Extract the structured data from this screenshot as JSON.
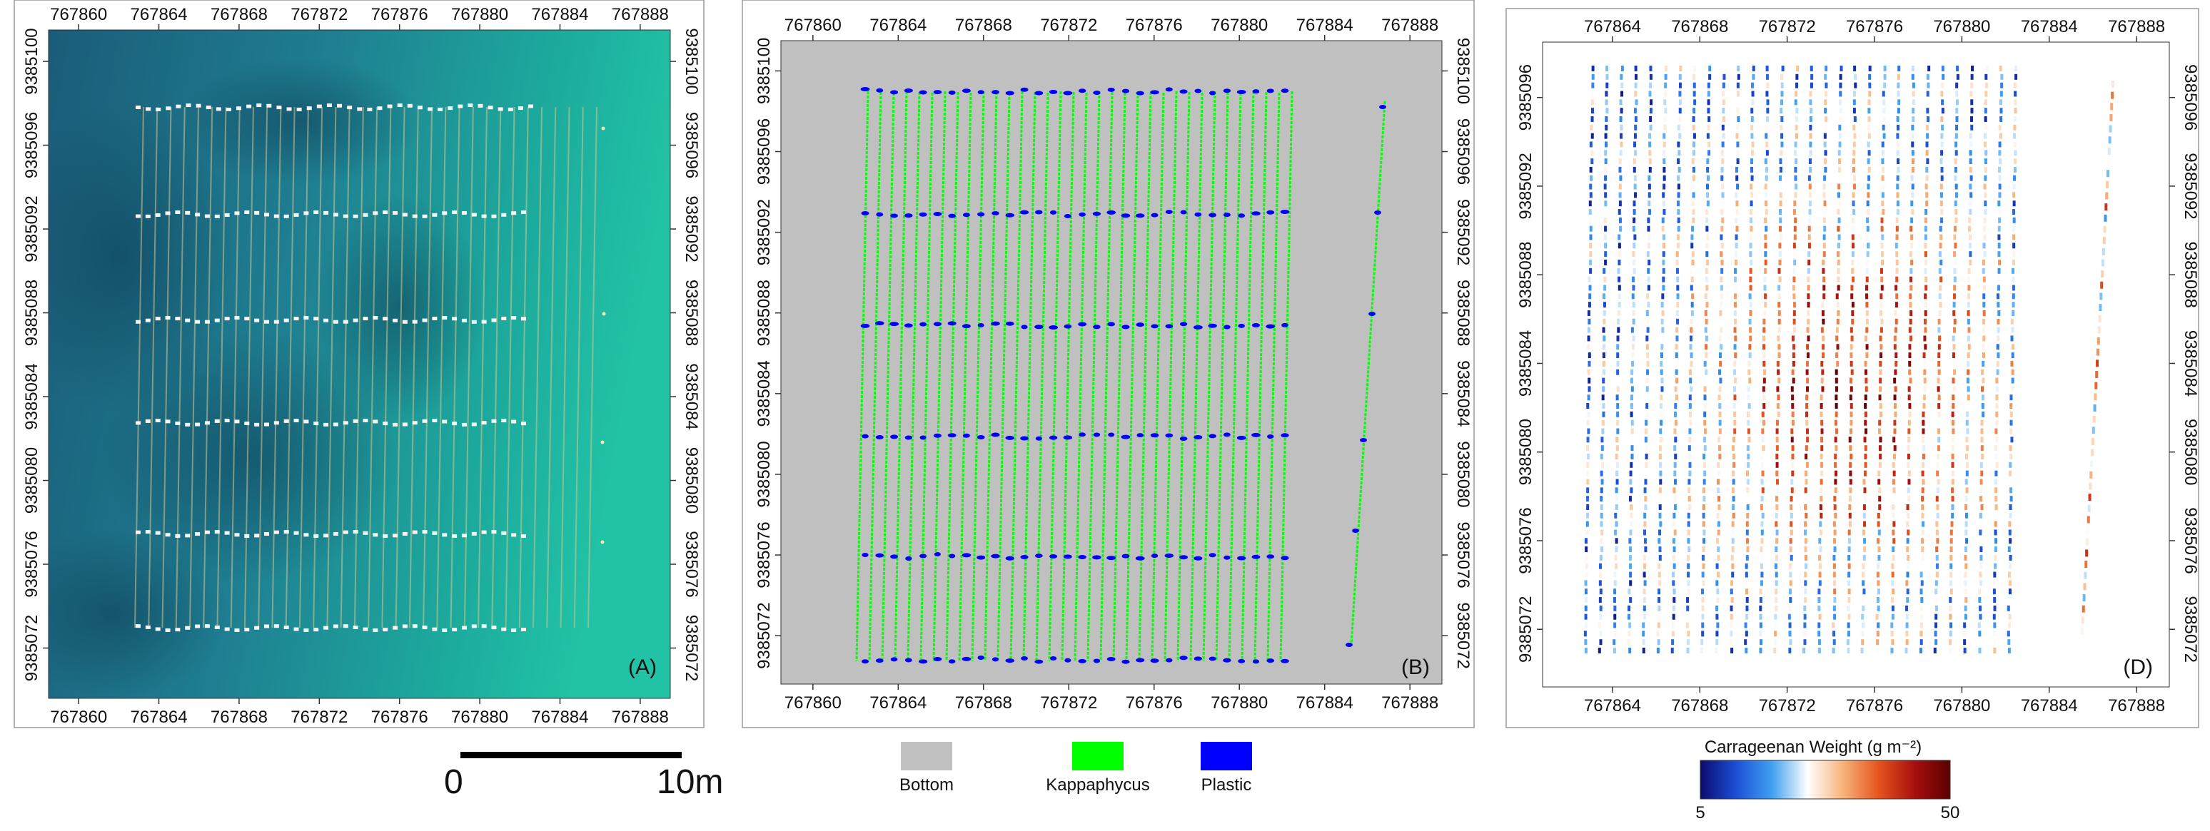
{
  "panels": [
    {
      "id": "A",
      "label": "(A)",
      "style": "photo",
      "x_ticks": [
        "767860",
        "767864",
        "767868",
        "767872",
        "767876",
        "767880",
        "767884",
        "767888"
      ],
      "y_ticks": [
        "9385072",
        "9385076",
        "9385080",
        "9385084",
        "9385088",
        "9385092",
        "9385096",
        "9385100"
      ],
      "x_range": [
        767858.5,
        767889.5
      ],
      "y_range": [
        9385069.6,
        9385101.5
      ],
      "left_axis": true,
      "right_axis": true,
      "top_axis": true,
      "bottom_axis": true
    },
    {
      "id": "B",
      "label": "(B)",
      "style": "classified",
      "x_ticks": [
        "767860",
        "767864",
        "767868",
        "767872",
        "767876",
        "767880",
        "767884",
        "767888"
      ],
      "y_ticks": [
        "9385072",
        "9385076",
        "9385080",
        "9385084",
        "9385088",
        "9385092",
        "9385096",
        "9385100"
      ],
      "x_range": [
        767858.5,
        767889.5
      ],
      "y_range": [
        9385069.6,
        9385101.5
      ],
      "left_axis": true,
      "right_axis": true,
      "top_axis": true,
      "bottom_axis": true
    },
    {
      "id": "D",
      "label": "(D)",
      "style": "weight",
      "x_ticks": [
        "767864",
        "767868",
        "767872",
        "767876",
        "767880",
        "767884",
        "767888"
      ],
      "y_ticks": [
        "9385072",
        "9385076",
        "9385080",
        "9385084",
        "9385088",
        "9385092",
        "9385096"
      ],
      "x_range": [
        767860.8,
        767889.5
      ],
      "y_range": [
        9385069.4,
        9385098.5
      ],
      "left_axis": true,
      "right_axis": true,
      "top_axis": true,
      "bottom_axis": true
    }
  ],
  "scale_bar": {
    "start_label": "0",
    "end_label": "10m"
  },
  "legend_b": [
    {
      "label": "Bottom",
      "color": "#c0c0c0"
    },
    {
      "label": "Kappaphycus",
      "color": "#00ff00"
    },
    {
      "label": "Plastic",
      "color": "#0000ff"
    }
  ],
  "colorbar": {
    "title": "Carrageenan Weight (g m⁻²)",
    "min_label": "5",
    "max_label": "50",
    "stops": [
      "#0a0a6e",
      "#1c4fd6",
      "#3fa0f0",
      "#ffffff",
      "#f7b37a",
      "#e4541d",
      "#a80f0f",
      "#5a0000"
    ]
  },
  "colors": {
    "water_dark": "#1e6a86",
    "water_light": "#1fb39b",
    "bottom_gray": "#c0c0c0",
    "kappaphycus": "#00ff00",
    "plastic": "#0000ff"
  }
}
